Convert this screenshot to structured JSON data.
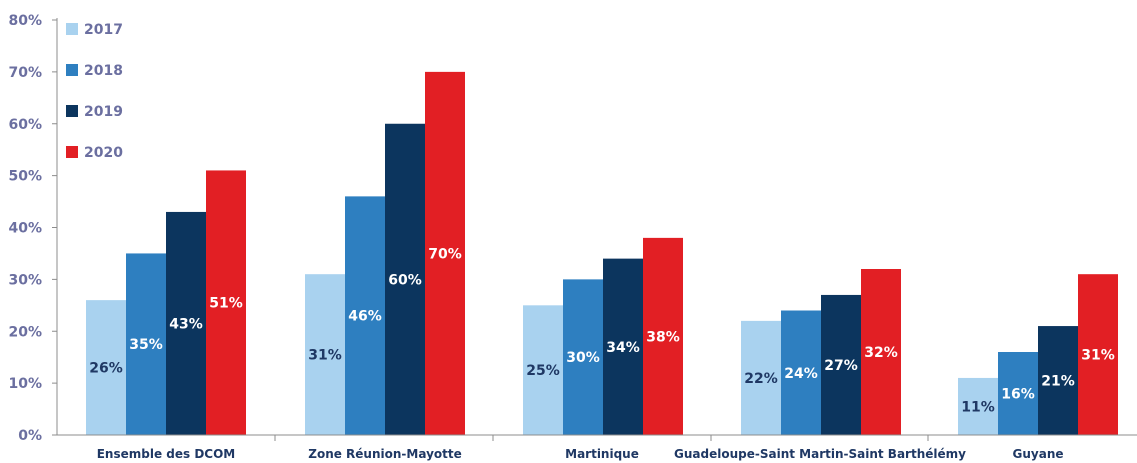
{
  "chart_data": {
    "type": "bar",
    "categories": [
      "Ensemble des DCOM",
      "Zone Réunion-Mayotte",
      "Martinique",
      "Guadeloupe-Saint Martin-Saint Barthélémy",
      "Guyane"
    ],
    "series": [
      {
        "name": "2017",
        "color": "#a9d2ef",
        "label_color": "#1f3864",
        "values": [
          26,
          31,
          25,
          22,
          11
        ],
        "labels": [
          "26%",
          "31%",
          "25%",
          "22%",
          "11%"
        ]
      },
      {
        "name": "2018",
        "color": "#2e7fc0",
        "label_color": "#ffffff",
        "values": [
          35,
          46,
          30,
          24,
          16
        ],
        "labels": [
          "35%",
          "46%",
          "30%",
          "24%",
          "16%"
        ]
      },
      {
        "name": "2019",
        "color": "#0c355e",
        "label_color": "#ffffff",
        "values": [
          43,
          60,
          34,
          27,
          21
        ],
        "labels": [
          "43%",
          "60%",
          "34%",
          "27%",
          "21%"
        ]
      },
      {
        "name": "2020",
        "color": "#e21f24",
        "label_color": "#ffffff",
        "values": [
          51,
          70,
          38,
          32,
          31
        ],
        "labels": [
          "51%",
          "70%",
          "38%",
          "32%",
          "31%"
        ]
      }
    ],
    "yticks": [
      "0%",
      "10%",
      "20%",
      "30%",
      "40%",
      "50%",
      "60%",
      "70%",
      "80%"
    ],
    "ylim": [
      0,
      80
    ],
    "legend": {
      "position": "top-left"
    },
    "grid": false
  }
}
